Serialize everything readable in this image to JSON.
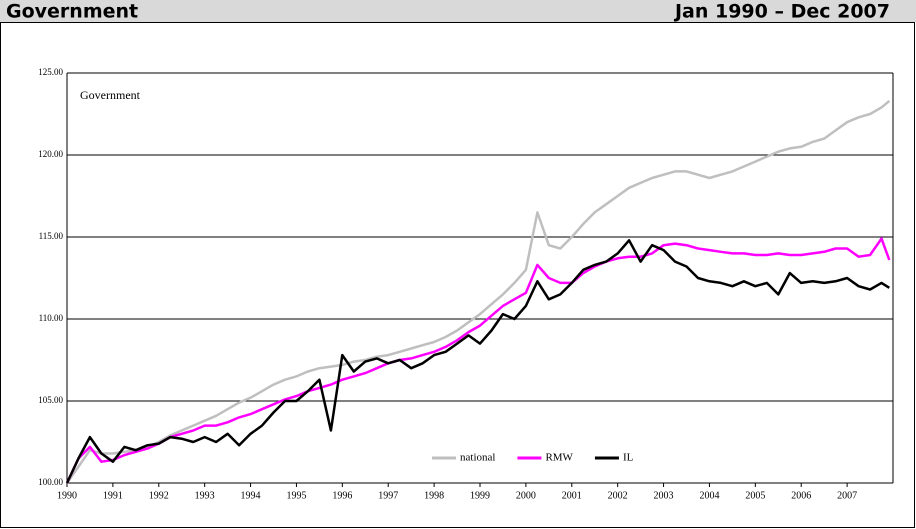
{
  "chart_data": {
    "type": "line",
    "title": "Government",
    "subtitle": "Jan 1990 – Dec 2007",
    "annotation": "Government",
    "x": [
      1990,
      1990.25,
      1990.5,
      1990.75,
      1991,
      1991.25,
      1991.5,
      1991.75,
      1992,
      1992.25,
      1992.5,
      1992.75,
      1993,
      1993.25,
      1993.5,
      1993.75,
      1994,
      1994.25,
      1994.5,
      1994.75,
      1995,
      1995.25,
      1995.5,
      1995.75,
      1996,
      1996.25,
      1996.5,
      1996.75,
      1997,
      1997.25,
      1997.5,
      1997.75,
      1998,
      1998.25,
      1998.5,
      1998.75,
      1999,
      1999.25,
      1999.5,
      1999.75,
      2000,
      2000.25,
      2000.5,
      2000.75,
      2001,
      2001.25,
      2001.5,
      2001.75,
      2002,
      2002.25,
      2002.5,
      2002.75,
      2003,
      2003.25,
      2003.5,
      2003.75,
      2004,
      2004.25,
      2004.5,
      2004.75,
      2005,
      2005.25,
      2005.5,
      2005.75,
      2006,
      2006.25,
      2006.5,
      2006.75,
      2007,
      2007.25,
      2007.5,
      2007.75,
      2007.92
    ],
    "series": [
      {
        "name": "national",
        "color": "#bfbfbf",
        "values": [
          100.0,
          101.0,
          102.0,
          101.8,
          101.8,
          101.9,
          102.0,
          102.2,
          102.5,
          102.9,
          103.2,
          103.5,
          103.8,
          104.1,
          104.5,
          104.9,
          105.2,
          105.6,
          106.0,
          106.3,
          106.5,
          106.8,
          107.0,
          107.1,
          107.2,
          107.4,
          107.5,
          107.7,
          107.8,
          108.0,
          108.2,
          108.4,
          108.6,
          108.9,
          109.3,
          109.8,
          110.3,
          110.9,
          111.5,
          112.2,
          113.0,
          116.5,
          114.5,
          114.3,
          115.0,
          115.8,
          116.5,
          117.0,
          117.5,
          118.0,
          118.3,
          118.6,
          118.8,
          119.0,
          119.0,
          118.8,
          118.6,
          118.8,
          119.0,
          119.3,
          119.6,
          119.9,
          120.2,
          120.4,
          120.5,
          120.8,
          121.0,
          121.5,
          122.0,
          122.3,
          122.5,
          122.9,
          123.3
        ]
      },
      {
        "name": "RMW",
        "color": "#ff00ff",
        "values": [
          100.0,
          101.5,
          102.2,
          101.3,
          101.4,
          101.7,
          101.9,
          102.1,
          102.4,
          102.8,
          103.0,
          103.2,
          103.5,
          103.5,
          103.7,
          104.0,
          104.2,
          104.5,
          104.8,
          105.1,
          105.3,
          105.6,
          105.8,
          106.0,
          106.3,
          106.5,
          106.7,
          107.0,
          107.3,
          107.5,
          107.6,
          107.8,
          108.0,
          108.3,
          108.7,
          109.2,
          109.6,
          110.2,
          110.8,
          111.2,
          111.6,
          113.3,
          112.5,
          112.2,
          112.2,
          112.8,
          113.2,
          113.5,
          113.7,
          113.8,
          113.8,
          114.0,
          114.5,
          114.6,
          114.5,
          114.3,
          114.2,
          114.1,
          114.0,
          114.0,
          113.9,
          113.9,
          114.0,
          113.9,
          113.9,
          114.0,
          114.1,
          114.3,
          114.3,
          113.8,
          113.9,
          114.9,
          113.6
        ]
      },
      {
        "name": "IL",
        "color": "#000000",
        "values": [
          100.0,
          101.5,
          102.8,
          101.8,
          101.3,
          102.2,
          102.0,
          102.3,
          102.4,
          102.8,
          102.7,
          102.5,
          102.8,
          102.5,
          103.0,
          102.3,
          103.0,
          103.5,
          104.3,
          105.0,
          105.0,
          105.6,
          106.3,
          103.2,
          107.8,
          106.8,
          107.4,
          107.6,
          107.3,
          107.5,
          107.0,
          107.3,
          107.8,
          108.0,
          108.5,
          109.0,
          108.5,
          109.3,
          110.3,
          110.0,
          110.8,
          112.3,
          111.2,
          111.5,
          112.2,
          113.0,
          113.3,
          113.5,
          114.0,
          114.8,
          113.5,
          114.5,
          114.2,
          113.5,
          113.2,
          112.5,
          112.3,
          112.2,
          112.0,
          112.3,
          112.0,
          112.2,
          111.5,
          112.8,
          112.2,
          112.3,
          112.2,
          112.3,
          112.5,
          112.0,
          111.8,
          112.2,
          111.9
        ]
      }
    ],
    "xlim": [
      1990,
      2008
    ],
    "xticks": [
      1990,
      1991,
      1992,
      1993,
      1994,
      1995,
      1996,
      1997,
      1998,
      1999,
      2000,
      2001,
      2002,
      2003,
      2004,
      2005,
      2006,
      2007
    ],
    "ylim": [
      100,
      125
    ],
    "yticks": [
      {
        "value": 100,
        "label": "100.00"
      },
      {
        "value": 105,
        "label": "105.00"
      },
      {
        "value": 110,
        "label": "110.00"
      },
      {
        "value": 115,
        "label": "115.00"
      },
      {
        "value": 120,
        "label": "120.00"
      },
      {
        "value": 125,
        "label": "125.00"
      }
    ],
    "grid": true,
    "legend": "bottom"
  }
}
